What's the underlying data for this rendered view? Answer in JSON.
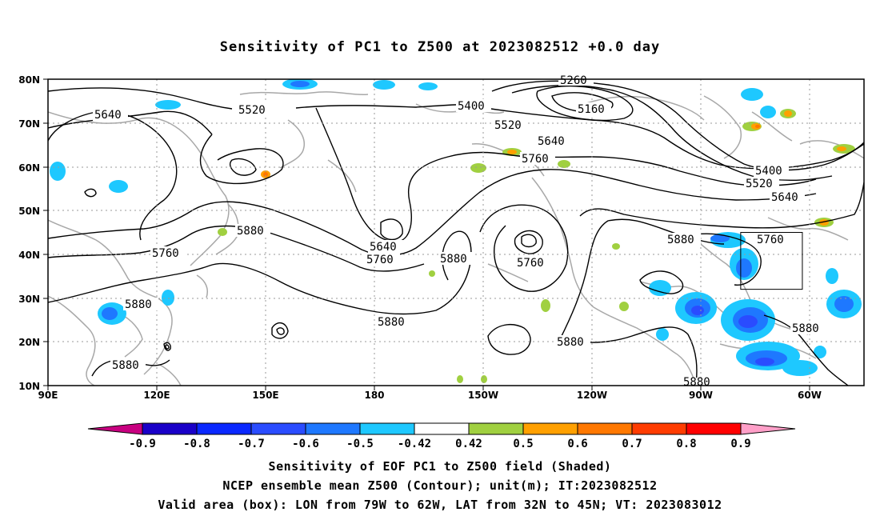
{
  "title": "Sensitivity of PC1 to Z500 at 2023082512 +0.0 day",
  "map": {
    "lat_labels": [
      "80N",
      "70N",
      "60N",
      "50N",
      "40N",
      "30N",
      "20N",
      "10N"
    ],
    "lon_labels": [
      "90E",
      "120E",
      "150E",
      "180",
      "150W",
      "120W",
      "90W",
      "60W"
    ],
    "contour_labels": [
      {
        "text": "5640"
      },
      {
        "text": "5520"
      },
      {
        "text": "5400"
      },
      {
        "text": "5260"
      },
      {
        "text": "5160"
      },
      {
        "text": "5520"
      },
      {
        "text": "5640"
      },
      {
        "text": "5760"
      },
      {
        "text": "5400"
      },
      {
        "text": "5520"
      },
      {
        "text": "5640"
      },
      {
        "text": "5880"
      },
      {
        "text": "5760"
      },
      {
        "text": "5880"
      },
      {
        "text": "5760"
      },
      {
        "text": "5640"
      },
      {
        "text": "5760"
      },
      {
        "text": "5880"
      },
      {
        "text": "5760"
      },
      {
        "text": "5880"
      },
      {
        "text": "5880"
      },
      {
        "text": "5880"
      },
      {
        "text": "5880"
      },
      {
        "text": "5880"
      },
      {
        "text": "5880"
      }
    ],
    "valid_box": {
      "lon_min": -79,
      "lon_max": -62,
      "lat_min": 32,
      "lat_max": 45
    }
  },
  "colorbar": {
    "labels": [
      "-0.9",
      "-0.8",
      "-0.7",
      "-0.6",
      "-0.5",
      "-0.42",
      "0.42",
      "0.5",
      "0.6",
      "0.7",
      "0.8",
      "0.9"
    ],
    "colors": [
      "#c80080",
      "#1a00c8",
      "#0a28ff",
      "#2a4cff",
      "#1e78ff",
      "#1ec8ff",
      "#ffffff",
      "#a0d040",
      "#ffa000",
      "#ff7800",
      "#ff3c00",
      "#ff0000",
      "#ff9fc8"
    ]
  },
  "captions": {
    "line1": "Sensitivity of EOF PC1 to Z500 field (Shaded)",
    "line2": "NCEP ensemble mean Z500 (Contour); unit(m); IT:2023082512",
    "line3": "Valid area (box): LON from 79W to 62W, LAT from 32N to 45N; VT: 2023083012"
  }
}
